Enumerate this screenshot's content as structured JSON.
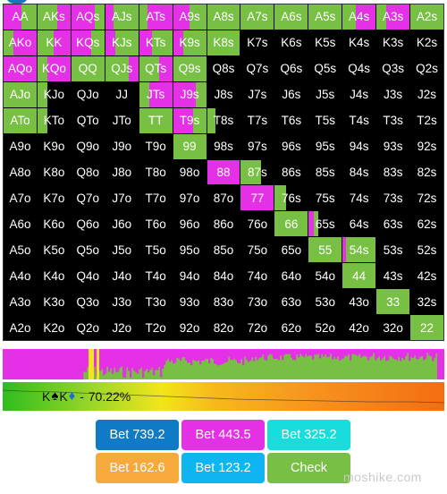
{
  "colors": {
    "raise_big": "#e531e5",
    "raise_small": "#f7931e",
    "call_check": "#77c043",
    "fold": "#000000",
    "bet_739": "#0f7ac6",
    "bet_443": "#e531e5",
    "bet_325": "#19dcdc",
    "bet_162": "#f7a93b",
    "bet_123": "#0fb5f0",
    "check": "#77c043"
  },
  "grid": {
    "rows": [
      [
        "AA",
        "AKs",
        "AQs",
        "AJs",
        "ATs",
        "A9s",
        "A8s",
        "A7s",
        "A6s",
        "A5s",
        "A4s",
        "A3s",
        "A2s"
      ],
      [
        "AKo",
        "KK",
        "KQs",
        "KJs",
        "KTs",
        "K9s",
        "K8s",
        "K7s",
        "K6s",
        "K5s",
        "K4s",
        "K3s",
        "K2s"
      ],
      [
        "AQo",
        "KQo",
        "QQ",
        "QJs",
        "QTs",
        "Q9s",
        "Q8s",
        "Q7s",
        "Q6s",
        "Q5s",
        "Q4s",
        "Q3s",
        "Q2s"
      ],
      [
        "AJo",
        "KJo",
        "QJo",
        "JJ",
        "JTs",
        "J9s",
        "J8s",
        "J7s",
        "J6s",
        "J5s",
        "J4s",
        "J3s",
        "J2s"
      ],
      [
        "ATo",
        "KTo",
        "QTo",
        "JTo",
        "TT",
        "T9s",
        "T8s",
        "T7s",
        "T6s",
        "T5s",
        "T4s",
        "T3s",
        "T2s"
      ],
      [
        "A9o",
        "K9o",
        "Q9o",
        "J9o",
        "T9o",
        "99",
        "98s",
        "97s",
        "96s",
        "95s",
        "94s",
        "93s",
        "92s"
      ],
      [
        "A8o",
        "K8o",
        "Q8o",
        "J8o",
        "T8o",
        "98o",
        "88",
        "87s",
        "86s",
        "85s",
        "84s",
        "83s",
        "82s"
      ],
      [
        "A7o",
        "K7o",
        "Q7o",
        "J7o",
        "T7o",
        "97o",
        "87o",
        "77",
        "76s",
        "75s",
        "74s",
        "73s",
        "72s"
      ],
      [
        "A6o",
        "K6o",
        "Q6o",
        "J6o",
        "T6o",
        "96o",
        "86o",
        "76o",
        "66",
        "65s",
        "64s",
        "63s",
        "62s"
      ],
      [
        "A5o",
        "K5o",
        "Q5o",
        "J5o",
        "T5o",
        "95o",
        "85o",
        "75o",
        "65o",
        "55",
        "54s",
        "53s",
        "52s"
      ],
      [
        "A4o",
        "K4o",
        "Q4o",
        "J4o",
        "T4o",
        "94o",
        "84o",
        "74o",
        "64o",
        "54o",
        "44",
        "43s",
        "42s"
      ],
      [
        "A3o",
        "K3o",
        "Q3o",
        "J3o",
        "T3o",
        "93o",
        "83o",
        "73o",
        "63o",
        "53o",
        "43o",
        "33",
        "32s"
      ],
      [
        "A2o",
        "K2o",
        "Q2o",
        "J2o",
        "T2o",
        "92o",
        "82o",
        "72o",
        "62o",
        "52o",
        "42o",
        "32o",
        "22"
      ]
    ],
    "fills": {
      "AA": [
        [
          "m",
          0.55
        ],
        [
          "g",
          0.45
        ]
      ],
      "AKs": [
        [
          "g",
          0.6
        ],
        [
          "m",
          0.4
        ]
      ],
      "AQs": [
        [
          "m",
          0.7
        ],
        [
          "g",
          0.3
        ]
      ],
      "AJs": [
        [
          "m",
          0.25
        ],
        [
          "g",
          0.75
        ]
      ],
      "ATs": [
        [
          "g",
          0.25
        ],
        [
          "m",
          0.75
        ]
      ],
      "A9s": [
        [
          "m",
          0.5
        ],
        [
          "g",
          0.5
        ]
      ],
      "A8s": [
        [
          "g",
          1.0
        ]
      ],
      "A7s": [
        [
          "g",
          1.0
        ]
      ],
      "A6s": [
        [
          "g",
          1.0
        ]
      ],
      "A5s": [
        [
          "g",
          1.0
        ]
      ],
      "A4s": [
        [
          "g",
          0.4
        ],
        [
          "m",
          0.6
        ]
      ],
      "A3s": [
        [
          "g",
          0.3
        ],
        [
          "m",
          0.7
        ]
      ],
      "A2s": [
        [
          "g",
          1.0
        ]
      ],
      "AKo": [
        [
          "g",
          0.3
        ],
        [
          "m",
          0.7
        ]
      ],
      "KK": [
        [
          "g",
          0.5
        ],
        [
          "m",
          0.5
        ]
      ],
      "KQs": [
        [
          "m",
          0.6
        ],
        [
          "g",
          0.4
        ]
      ],
      "KJs": [
        [
          "m",
          0.3
        ],
        [
          "g",
          0.7
        ]
      ],
      "KTs": [
        [
          "m",
          0.4
        ],
        [
          "g",
          0.6
        ]
      ],
      "K9s": [
        [
          "m",
          0.3
        ],
        [
          "g",
          0.7
        ]
      ],
      "K8s": [
        [
          "g",
          1.0
        ]
      ],
      "AQo": [
        [
          "m",
          1.0
        ]
      ],
      "KQo": [
        [
          "g",
          0.3
        ],
        [
          "m",
          0.7
        ]
      ],
      "QQ": [
        [
          "g",
          1.0
        ]
      ],
      "QJs": [
        [
          "g",
          0.7
        ],
        [
          "m",
          0.3
        ]
      ],
      "QTs": [
        [
          "g",
          0.6
        ],
        [
          "m",
          0.4
        ]
      ],
      "Q9s": [
        [
          "g",
          1.0
        ]
      ],
      "AJo": [
        [
          "g",
          1.0
        ]
      ],
      "KJo": [
        [
          "g",
          0.3
        ],
        [
          "f",
          0.7
        ]
      ],
      "JTs": [
        [
          "g",
          0.3
        ],
        [
          "m",
          0.7
        ]
      ],
      "J9s": [
        [
          "m",
          0.7
        ],
        [
          "g",
          0.3
        ]
      ],
      "ATo": [
        [
          "g",
          1.0
        ]
      ],
      "KTo": [
        [
          "g",
          0.3
        ],
        [
          "f",
          0.7
        ]
      ],
      "TT": [
        [
          "g",
          1.0
        ]
      ],
      "T9s": [
        [
          "m",
          0.6
        ],
        [
          "g",
          0.4
        ]
      ],
      "T8s": [
        [
          "g",
          0.25
        ],
        [
          "f",
          0.75
        ]
      ],
      "99": [
        [
          "g",
          1.0
        ]
      ],
      "88": [
        [
          "m",
          1.0
        ]
      ],
      "87s": [
        [
          "g",
          0.6
        ],
        [
          "f",
          0.4
        ]
      ],
      "77": [
        [
          "m",
          1.0
        ]
      ],
      "76s": [
        [
          "g",
          0.35
        ],
        [
          "f",
          0.65
        ]
      ],
      "66": [
        [
          "g",
          1.0
        ]
      ],
      "65s": [
        [
          "m",
          0.15
        ],
        [
          "g",
          0.15
        ],
        [
          "f",
          0.7
        ]
      ],
      "55": [
        [
          "g",
          1.0
        ]
      ],
      "54s": [
        [
          "m",
          0.1
        ],
        [
          "g",
          0.9
        ]
      ],
      "44": [
        [
          "g",
          1.0
        ]
      ],
      "43s": [
        [
          "f",
          1.0
        ]
      ],
      "33": [
        [
          "g",
          1.0
        ]
      ],
      "22": [
        [
          "g",
          1.0
        ]
      ]
    }
  },
  "equity_bar": {
    "label": "K♠K♦ - 70.22%",
    "hand_rank1": "K",
    "suit1": "♠",
    "hand_rank2": "K",
    "suit2": "♦",
    "separator": " - ",
    "value": "70.22%"
  },
  "buttons": [
    {
      "label": "Bet 739.2",
      "color": "#0f7ac6"
    },
    {
      "label": "Bet 443.5",
      "color": "#e531e5"
    },
    {
      "label": "Bet 325.2",
      "color": "#19dcdc"
    },
    {
      "label": "Bet 162.6",
      "color": "#f7a93b"
    },
    {
      "label": "Bet 123.2",
      "color": "#0fb5f0"
    },
    {
      "label": "Check",
      "color": "#77c043"
    }
  ],
  "watermark": "moshike.com"
}
